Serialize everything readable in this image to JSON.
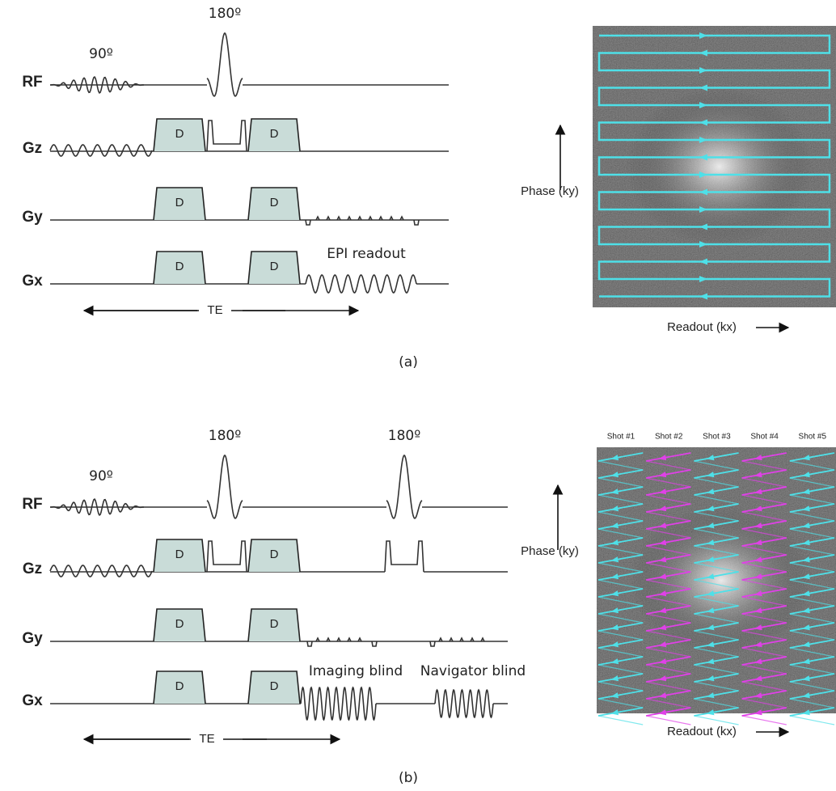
{
  "panel_a": {
    "channels": [
      "RF",
      "Gz",
      "Gy",
      "Gx"
    ],
    "rf_90": "90º",
    "rf_180": "180º",
    "boxes": [
      "D",
      "D",
      "D",
      "D",
      "D",
      "D"
    ],
    "epi_readout": "EPI readout",
    "te": "TE",
    "kspace": {
      "phase": "Phase (ky)",
      "readout": "Readout (kx)"
    },
    "caption": "(a)"
  },
  "panel_b": {
    "channels": [
      "RF",
      "Gz",
      "Gy",
      "Gx"
    ],
    "rf_90": "90º",
    "rf_180_first": "180º",
    "rf_180_second": "180º",
    "boxes": [
      "D",
      "D",
      "D",
      "D",
      "D",
      "D"
    ],
    "imaging_blind": "Imaging blind",
    "navigator_blind": "Navigator blind",
    "te": "TE",
    "kspace": {
      "shots": [
        "Shot #1",
        "Shot #2",
        "Shot #3",
        "Shot #4",
        "Shot #5"
      ],
      "phase": "Phase (ky)",
      "readout": "Readout (kx)"
    },
    "caption": "(b)"
  }
}
